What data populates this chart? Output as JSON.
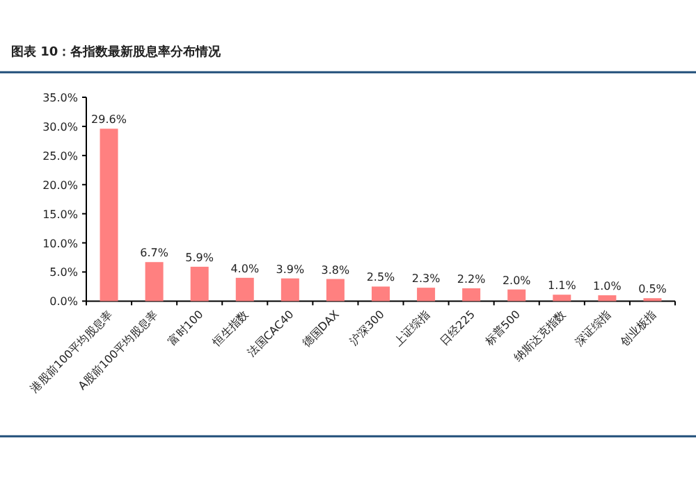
{
  "chart_data": {
    "type": "bar",
    "title": "图表 10：各指数最新股息率分布情况",
    "categories": [
      "港股前100平均股息率",
      "A股前100平均股息率",
      "富时100",
      "恒生指数",
      "法国CAC40",
      "德国DAX",
      "沪深300",
      "上证综指",
      "日经225",
      "标普500",
      "纳斯达克指数",
      "深证综指",
      "创业板指"
    ],
    "values": [
      29.6,
      6.7,
      5.9,
      4.0,
      3.9,
      3.8,
      2.5,
      2.3,
      2.2,
      2.0,
      1.1,
      1.0,
      0.5
    ],
    "color": "#ff8080",
    "ylim": [
      0,
      35
    ],
    "yticks": [
      {
        "value": 0,
        "label": "0.0%"
      },
      {
        "value": 5,
        "label": "5.0%"
      },
      {
        "value": 10,
        "label": "10.0%"
      },
      {
        "value": 15,
        "label": "15.0%"
      },
      {
        "value": 20,
        "label": "20.0%"
      },
      {
        "value": 25,
        "label": "25.0%"
      },
      {
        "value": 30,
        "label": "30.0%"
      },
      {
        "value": 35,
        "label": "35.0%"
      }
    ],
    "value_labels": [
      "29.6%",
      "6.7%",
      "5.9%",
      "4.0%",
      "3.9%",
      "3.8%",
      "2.5%",
      "2.3%",
      "2.2%",
      "2.0%",
      "1.1%",
      "1.0%",
      "0.5%"
    ]
  }
}
